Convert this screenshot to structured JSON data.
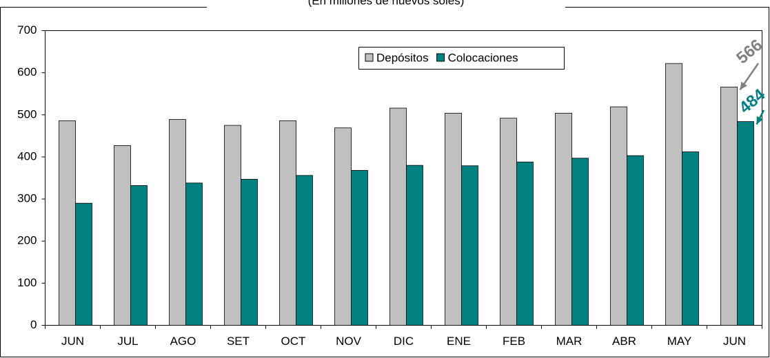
{
  "chart_data": {
    "type": "bar",
    "title": "(En millones de nuevos soles)",
    "categories": [
      "JUN",
      "JUL",
      "AGO",
      "SET",
      "OCT",
      "NOV",
      "DIC",
      "ENE",
      "FEB",
      "MAR",
      "ABR",
      "MAY",
      "JUN"
    ],
    "series": [
      {
        "name": "Depósitos",
        "color": "#c0c0c0",
        "values": [
          486,
          427,
          489,
          475,
          486,
          469,
          516,
          504,
          492,
          504,
          519,
          622,
          566
        ]
      },
      {
        "name": "Colocaciones",
        "color": "#008080",
        "values": [
          290,
          332,
          338,
          347,
          356,
          368,
          380,
          379,
          388,
          397,
          403,
          412,
          484
        ]
      }
    ],
    "ylim": [
      0,
      700
    ],
    "yticks": [
      0,
      100,
      200,
      300,
      400,
      500,
      600,
      700
    ],
    "grid": false,
    "legend": "top",
    "annotations": [
      "566",
      "484"
    ]
  }
}
